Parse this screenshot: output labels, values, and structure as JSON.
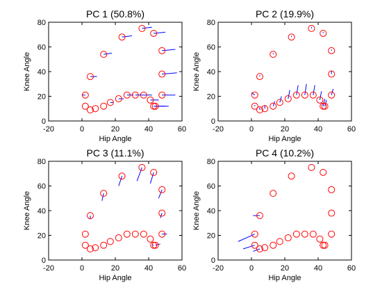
{
  "chart_data": [
    {
      "type": "scatter",
      "title": "PC 1 (50.8%)",
      "xlabel": "Hip Angle",
      "ylabel": "Knee Angle",
      "xlim": [
        -20,
        60
      ],
      "ylim": [
        0,
        80
      ],
      "xticks": [
        "-20",
        "0",
        "20",
        "40",
        "60"
      ],
      "yticks": [
        "0",
        "20",
        "40",
        "60",
        "80"
      ],
      "series": [
        {
          "x": [
            2,
            2,
            5,
            8,
            13,
            17,
            22,
            27,
            32,
            37,
            41,
            43,
            44,
            48,
            48,
            48,
            43,
            36,
            24,
            13,
            5
          ],
          "y": [
            21,
            12,
            9,
            10,
            12,
            15,
            18,
            21,
            21,
            21,
            17,
            12,
            12,
            21,
            38,
            57,
            71,
            75,
            68,
            54,
            36
          ],
          "dx": [
            -2,
            0,
            0,
            0,
            0,
            2,
            3,
            4,
            5,
            5,
            5,
            7,
            8,
            8,
            9,
            8,
            7,
            6,
            6,
            5,
            4
          ],
          "dy": [
            0,
            0,
            0,
            0,
            0,
            0,
            0,
            0,
            0,
            0,
            0,
            0,
            0,
            0,
            1,
            1,
            1,
            1,
            1,
            1,
            0
          ]
        }
      ]
    },
    {
      "type": "scatter",
      "title": "PC 2 (19.9%)",
      "xlabel": "Hip Angle",
      "ylabel": "Knee Angle",
      "xlim": [
        -20,
        60
      ],
      "ylim": [
        0,
        80
      ],
      "xticks": [
        "-20",
        "0",
        "20",
        "40",
        "60"
      ],
      "yticks": [
        "0",
        "20",
        "40",
        "60",
        "80"
      ],
      "series": [
        {
          "x": [
            2,
            2,
            5,
            8,
            13,
            17,
            22,
            27,
            32,
            37,
            41,
            43,
            44,
            48,
            48,
            48,
            43,
            36,
            24,
            13,
            5
          ],
          "y": [
            21,
            12,
            9,
            10,
            12,
            15,
            18,
            21,
            21,
            21,
            17,
            12,
            12,
            21,
            38,
            57,
            71,
            75,
            68,
            54,
            36
          ],
          "dx": [
            -2,
            0,
            0,
            0,
            1,
            1,
            1,
            1,
            1,
            1,
            1,
            1,
            1,
            1,
            0,
            0,
            0,
            0,
            0,
            0,
            0
          ],
          "dy": [
            2,
            1,
            2,
            3,
            4,
            5,
            7,
            8,
            9,
            8,
            7,
            6,
            5,
            5,
            3,
            1,
            1,
            1,
            1,
            1,
            1
          ]
        }
      ]
    },
    {
      "type": "scatter",
      "title": "PC 3 (11.1%)",
      "xlabel": "Hip Angle",
      "ylabel": "Knee Angle",
      "xlim": [
        -20,
        60
      ],
      "ylim": [
        0,
        80
      ],
      "xticks": [
        "-20",
        "0",
        "20",
        "40",
        "60"
      ],
      "yticks": [
        "0",
        "20",
        "40",
        "60",
        "80"
      ],
      "series": [
        {
          "x": [
            2,
            2,
            5,
            8,
            13,
            17,
            22,
            27,
            32,
            37,
            41,
            43,
            44,
            48,
            48,
            48,
            43,
            36,
            24,
            13,
            5
          ],
          "y": [
            21,
            12,
            9,
            10,
            12,
            15,
            18,
            21,
            21,
            21,
            17,
            12,
            12,
            21,
            38,
            57,
            71,
            75,
            68,
            54,
            36
          ],
          "dx": [
            0,
            0,
            0,
            0,
            0,
            0,
            0,
            0,
            0,
            0,
            0,
            -1,
            3,
            3,
            -1,
            -2,
            -2,
            -3,
            -2,
            -1,
            0
          ],
          "dy": [
            0,
            0,
            0,
            0,
            0,
            0,
            0,
            0,
            0,
            0,
            0,
            0,
            1,
            0,
            -4,
            -7,
            -9,
            -11,
            -8,
            -6,
            -3
          ]
        }
      ]
    },
    {
      "type": "scatter",
      "title": "PC 4 (10.2%)",
      "xlabel": "Hip Angle",
      "ylabel": "Knee Angle",
      "xlim": [
        -20,
        60
      ],
      "ylim": [
        0,
        80
      ],
      "xticks": [
        "-20",
        "0",
        "20",
        "40",
        "60"
      ],
      "yticks": [
        "0",
        "20",
        "40",
        "60",
        "80"
      ],
      "series": [
        {
          "x": [
            2,
            2,
            5,
            8,
            13,
            17,
            22,
            27,
            32,
            37,
            41,
            43,
            44,
            48,
            48,
            48,
            43,
            36,
            24,
            13,
            5
          ],
          "y": [
            21,
            12,
            9,
            10,
            12,
            15,
            18,
            21,
            21,
            21,
            17,
            12,
            12,
            21,
            38,
            57,
            71,
            75,
            68,
            54,
            36
          ],
          "dx": [
            -10,
            -7,
            -4,
            0,
            0,
            0,
            0,
            0,
            0,
            0,
            0,
            0,
            0,
            0,
            0,
            0,
            0,
            0,
            0,
            0,
            -4
          ],
          "dy": [
            -6,
            -3,
            -2,
            0,
            0,
            0,
            0,
            0,
            0,
            0,
            0,
            0,
            0,
            0,
            0,
            0,
            0,
            0,
            0,
            0,
            0
          ]
        }
      ]
    }
  ],
  "colors": {
    "marker": "#ff0000",
    "vector": "#0000ff",
    "axis": "#000000"
  }
}
